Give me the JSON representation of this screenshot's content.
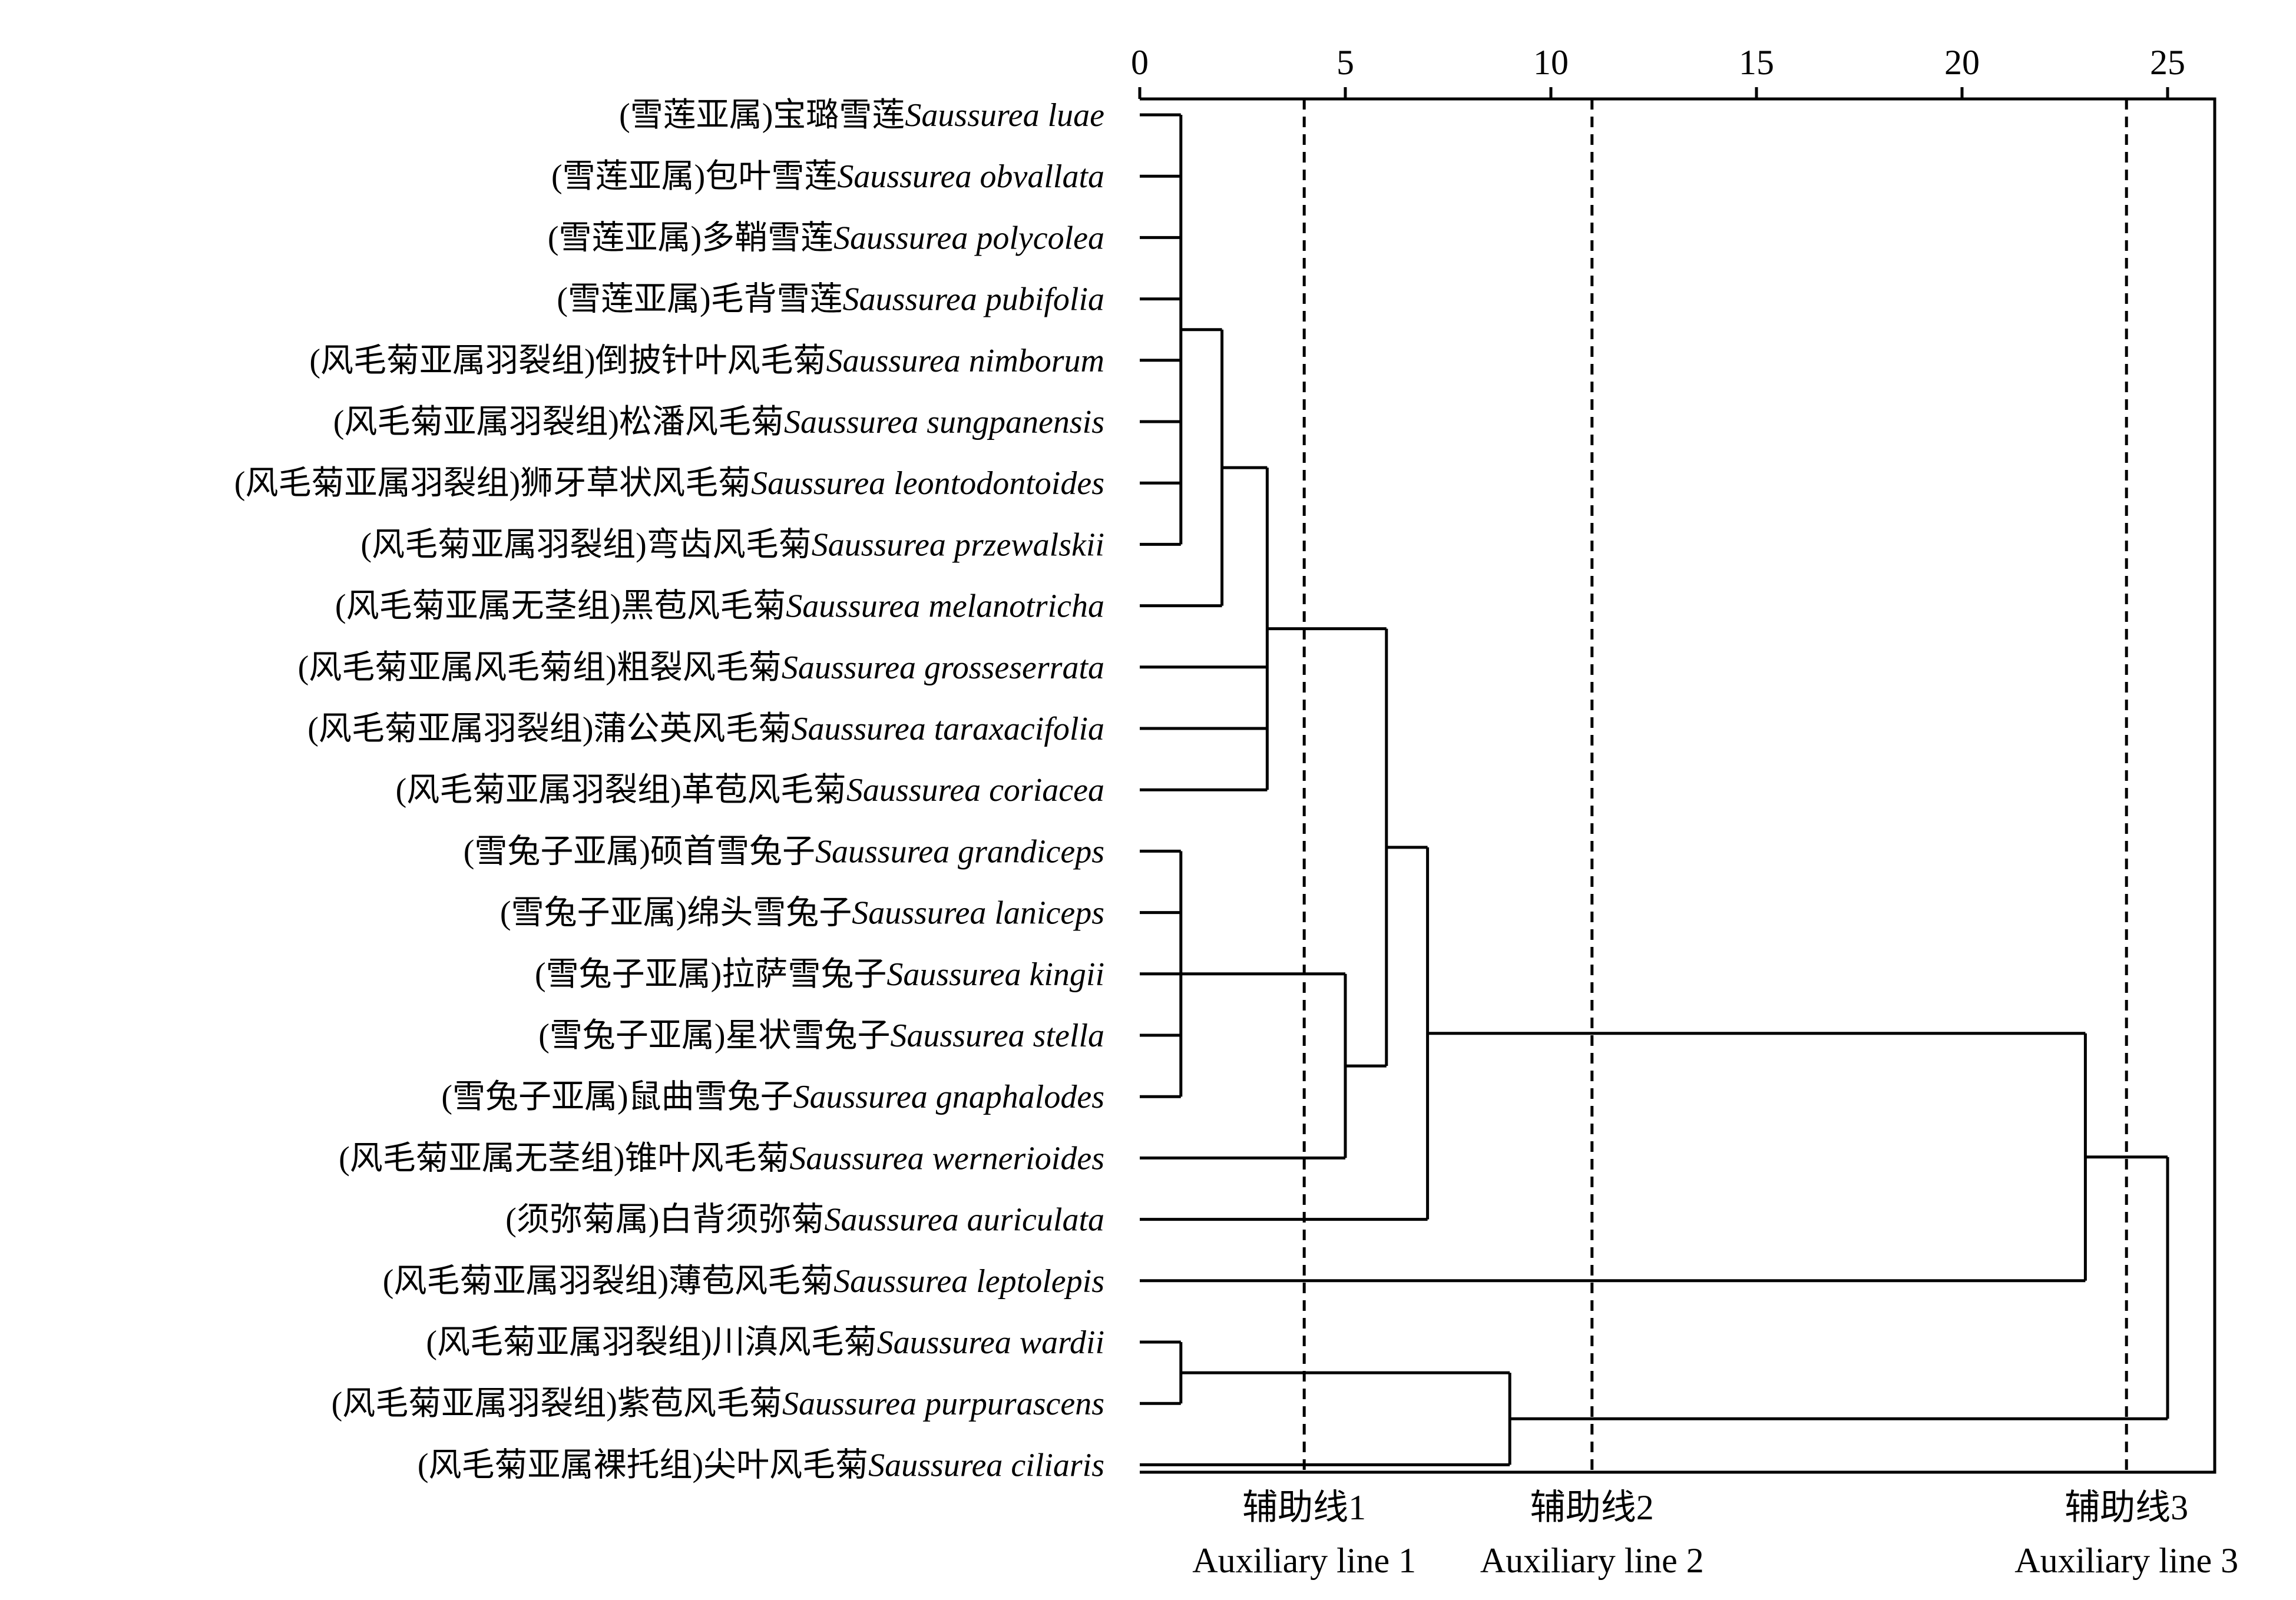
{
  "chart_data": {
    "type": "dendrogram",
    "orientation": "horizontal",
    "x_axis": {
      "position": "top",
      "min": 0,
      "max": 25,
      "ticks": [
        0,
        5,
        10,
        15,
        20,
        25
      ]
    },
    "leaves": [
      {
        "cn": "(雪莲亚属)宝璐雪莲",
        "sci": "Saussurea luae"
      },
      {
        "cn": "(雪莲亚属)包叶雪莲",
        "sci": "Saussurea obvallata"
      },
      {
        "cn": "(雪莲亚属)多鞘雪莲",
        "sci": "Saussurea polycolea"
      },
      {
        "cn": "(雪莲亚属)毛背雪莲",
        "sci": "Saussurea pubifolia"
      },
      {
        "cn": "(风毛菊亚属羽裂组)倒披针叶风毛菊",
        "sci": "Saussurea nimborum"
      },
      {
        "cn": "(风毛菊亚属羽裂组)松潘风毛菊",
        "sci": "Saussurea sungpanensis"
      },
      {
        "cn": "(风毛菊亚属羽裂组)狮牙草状风毛菊",
        "sci": "Saussurea leontodontoides"
      },
      {
        "cn": "(风毛菊亚属羽裂组)弯齿风毛菊",
        "sci": "Saussurea przewalskii"
      },
      {
        "cn": "(风毛菊亚属无茎组)黑苞风毛菊",
        "sci": "Saussurea melanotricha"
      },
      {
        "cn": "(风毛菊亚属风毛菊组)粗裂风毛菊",
        "sci": "Saussurea grosseserrata"
      },
      {
        "cn": "(风毛菊亚属羽裂组)蒲公英风毛菊",
        "sci": "Saussurea taraxacifolia"
      },
      {
        "cn": "(风毛菊亚属羽裂组)革苞风毛菊",
        "sci": "Saussurea coriacea"
      },
      {
        "cn": "(雪兔子亚属)硕首雪兔子",
        "sci": "Saussurea grandiceps"
      },
      {
        "cn": "(雪兔子亚属)绵头雪兔子",
        "sci": "Saussurea laniceps"
      },
      {
        "cn": "(雪兔子亚属)拉萨雪兔子",
        "sci": "Saussurea kingii"
      },
      {
        "cn": "(雪兔子亚属)星状雪兔子",
        "sci": "Saussurea stella"
      },
      {
        "cn": "(雪兔子亚属)鼠曲雪兔子",
        "sci": "Saussurea gnaphalodes"
      },
      {
        "cn": "(风毛菊亚属无茎组)锥叶风毛菊",
        "sci": "Saussurea wernerioides"
      },
      {
        "cn": "(须弥菊属)白背须弥菊",
        "sci": "Saussurea auriculata"
      },
      {
        "cn": "(风毛菊亚属羽裂组)薄苞风毛菊",
        "sci": "Saussurea leptolepis"
      },
      {
        "cn": "(风毛菊亚属羽裂组)川滇风毛菊",
        "sci": "Saussurea wardii"
      },
      {
        "cn": "(风毛菊亚属羽裂组)紫苞风毛菊",
        "sci": "Saussurea purpurascens"
      },
      {
        "cn": "(风毛菊亚属裸托组)尖叶风毛菊",
        "sci": "Saussurea ciliaris"
      }
    ],
    "merges": [
      {
        "id": "c1",
        "children": [
          "L0",
          "L1",
          "L2",
          "L3",
          "L4",
          "L5",
          "L6",
          "L7"
        ],
        "height": 1.0
      },
      {
        "id": "c2",
        "children": [
          "c1",
          "L8"
        ],
        "height": 2.0
      },
      {
        "id": "c3",
        "children": [
          "c2",
          "L9",
          "L10",
          "L11"
        ],
        "height": 3.1
      },
      {
        "id": "c4",
        "children": [
          "L12",
          "L13",
          "L14",
          "L15",
          "L16"
        ],
        "height": 1.0
      },
      {
        "id": "c5",
        "children": [
          "c4",
          "L17"
        ],
        "height": 5.0
      },
      {
        "id": "c6",
        "children": [
          "c3",
          "c5"
        ],
        "height": 6.0
      },
      {
        "id": "c7",
        "children": [
          "c6",
          "L18"
        ],
        "height": 7.0
      },
      {
        "id": "c8",
        "children": [
          "c7",
          "L19"
        ],
        "height": 23.0
      },
      {
        "id": "c9",
        "children": [
          "L20",
          "L21"
        ],
        "height": 1.0
      },
      {
        "id": "c10",
        "children": [
          "c9",
          "L22"
        ],
        "height": 9.0
      },
      {
        "id": "c11",
        "children": [
          "c8",
          "c10"
        ],
        "height": 25.0
      }
    ],
    "auxiliary_lines": [
      {
        "x": 4.0,
        "label_cn": "辅助线1",
        "label_en": "Auxiliary line 1"
      },
      {
        "x": 11.0,
        "label_cn": "辅助线2",
        "label_en": "Auxiliary line 2"
      },
      {
        "x": 24.0,
        "label_cn": "辅助线3",
        "label_en": "Auxiliary line 3"
      }
    ]
  }
}
